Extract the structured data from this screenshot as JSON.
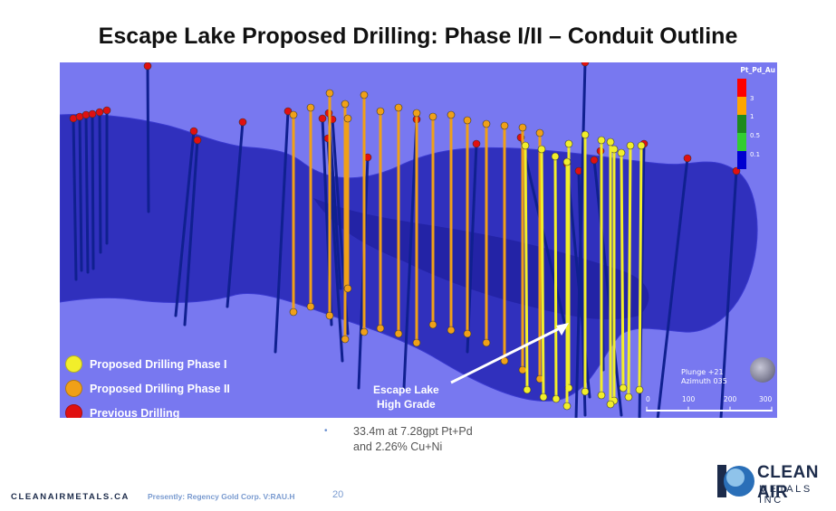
{
  "slide": {
    "title": "Escape Lake Proposed Drilling: Phase I/II – Conduit Outline",
    "page_number": "20"
  },
  "legend": {
    "items": [
      {
        "label": "Proposed Drilling Phase I",
        "color": "#f2ee2a"
      },
      {
        "label": "Proposed Drilling Phase II",
        "color": "#f0a018"
      },
      {
        "label": "Previous Drilling",
        "color": "#e01010"
      }
    ]
  },
  "grade_scale": {
    "title": "Pt_Pd_Au",
    "bins": [
      {
        "label": "3",
        "color": "#ff0000"
      },
      {
        "label": "1",
        "color": "#ffa500"
      },
      {
        "label": "0.5",
        "color": "#1e8a1e"
      },
      {
        "label": "0.1",
        "color": "#32cd32"
      },
      {
        "label": "",
        "color": "#0000d0"
      }
    ],
    "labels": [
      "3",
      "1",
      "0.5",
      "0.1"
    ]
  },
  "callout": {
    "line1": "Escape Lake",
    "line2": "High Grade"
  },
  "orientation": {
    "plunge": "Plunge +21",
    "azimuth": "Azimuth 035"
  },
  "distance_axis": [
    "0",
    "100",
    "200",
    "300"
  ],
  "highlight": {
    "line1": "33.4m at 7.28gpt Pt+Pd",
    "line2": "and 2.26% Cu+Ni"
  },
  "footer": {
    "site": "CLEANAIRMETALS.CA",
    "note": "Presently: Regency Gold Corp. V:RAU.H"
  },
  "logo": {
    "word1": "CLEAN AIR",
    "word2": "METALS INC"
  },
  "colors": {
    "background": "#7878f0",
    "conduit": "#2323b4",
    "phase1": "#f2ee2a",
    "phase2": "#f0a018",
    "previous": "#e01010",
    "drill_trace": "#102090"
  }
}
